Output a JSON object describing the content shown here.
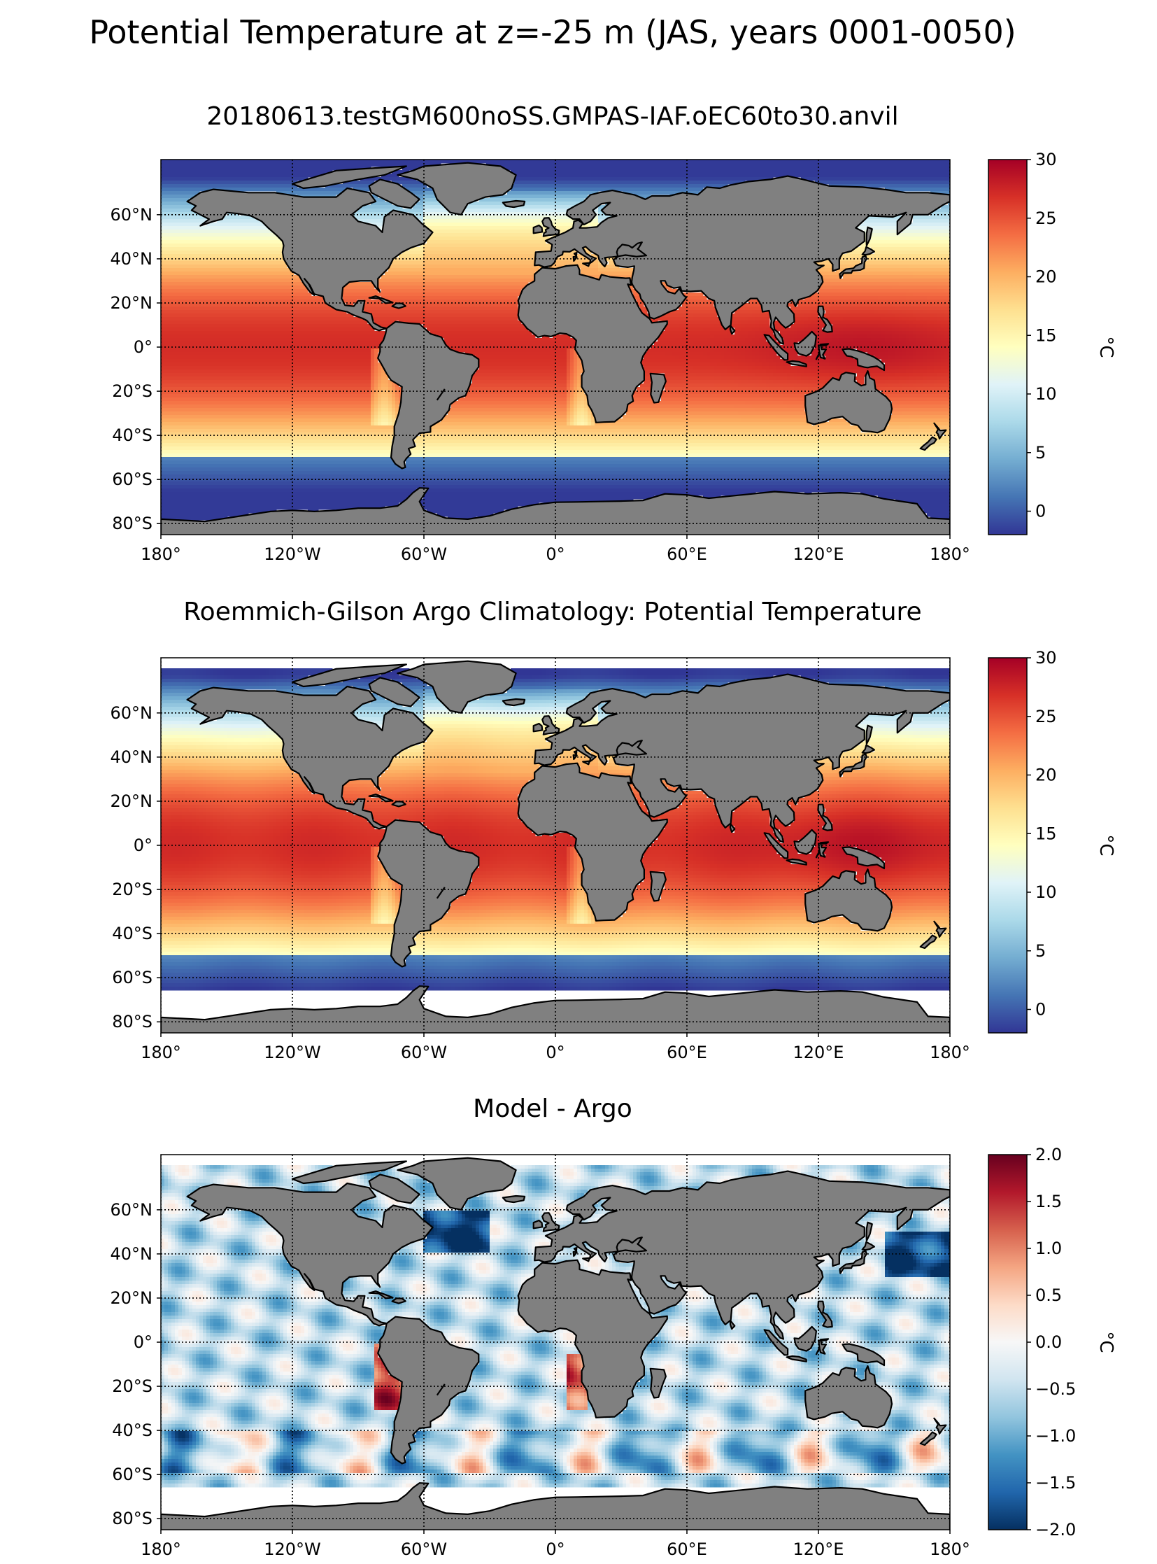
{
  "figure": {
    "title": "Potential Temperature at z=-25 m (JAS, years 0001-0050)"
  },
  "colors": {
    "land": "#808080",
    "frame": "#000000",
    "missing": "#ffffff"
  },
  "chart_data": [
    {
      "type": "heatmap",
      "title": "20180613.testGM600noSS.GMPAS-IAF.oEC60to30.anvil",
      "colormap": "RdYlBu_r",
      "field": "model",
      "xlim": [
        -180,
        180
      ],
      "ylim": [
        -85,
        85
      ],
      "xticks": [
        -180,
        -120,
        -60,
        0,
        60,
        120,
        180
      ],
      "xtick_labels": [
        "180°",
        "120°W",
        "60°W",
        "0°",
        "60°E",
        "120°E",
        "180°"
      ],
      "yticks": [
        60,
        40,
        20,
        0,
        -20,
        -40,
        -60,
        -80
      ],
      "ytick_labels": [
        "60°N",
        "40°N",
        "20°N",
        "0°",
        "20°S",
        "40°S",
        "60°S",
        "80°S"
      ],
      "grid": true,
      "colorbar": {
        "range": [
          -2,
          30
        ],
        "ticks": [
          0,
          5,
          10,
          15,
          20,
          25,
          30
        ],
        "tick_labels": [
          "0",
          "5",
          "10",
          "15",
          "20",
          "25",
          "30"
        ],
        "label": "°C"
      },
      "data_lat_range": [
        -78,
        85
      ]
    },
    {
      "type": "heatmap",
      "title": "Roemmich-Gilson Argo Climatology: Potential Temperature",
      "colormap": "RdYlBu_r",
      "field": "argo",
      "xlim": [
        -180,
        180
      ],
      "ylim": [
        -85,
        85
      ],
      "xticks": [
        -180,
        -120,
        -60,
        0,
        60,
        120,
        180
      ],
      "xtick_labels": [
        "180°",
        "120°W",
        "60°W",
        "0°",
        "60°E",
        "120°E",
        "180°"
      ],
      "yticks": [
        60,
        40,
        20,
        0,
        -20,
        -40,
        -60,
        -80
      ],
      "ytick_labels": [
        "60°N",
        "40°N",
        "20°N",
        "0°",
        "20°S",
        "40°S",
        "60°S",
        "80°S"
      ],
      "grid": true,
      "colorbar": {
        "range": [
          -2,
          30
        ],
        "ticks": [
          0,
          5,
          10,
          15,
          20,
          25,
          30
        ],
        "tick_labels": [
          "0",
          "5",
          "10",
          "15",
          "20",
          "25",
          "30"
        ],
        "label": "°C"
      },
      "data_lat_range": [
        -65,
        80
      ]
    },
    {
      "type": "heatmap",
      "title": "Model - Argo",
      "colormap": "RdBu_r",
      "field": "bias",
      "xlim": [
        -180,
        180
      ],
      "ylim": [
        -85,
        85
      ],
      "xticks": [
        -180,
        -120,
        -60,
        0,
        60,
        120,
        180
      ],
      "xtick_labels": [
        "180°",
        "120°W",
        "60°W",
        "0°",
        "60°E",
        "120°E",
        "180°"
      ],
      "yticks": [
        60,
        40,
        20,
        0,
        -20,
        -40,
        -60,
        -80
      ],
      "ytick_labels": [
        "60°N",
        "40°N",
        "20°N",
        "0°",
        "20°S",
        "40°S",
        "60°S",
        "80°S"
      ],
      "grid": true,
      "colorbar": {
        "range": [
          -2,
          2
        ],
        "ticks": [
          -2,
          -1.5,
          -1,
          -0.5,
          0,
          0.5,
          1,
          1.5,
          2
        ],
        "tick_labels": [
          "−2.0",
          "−1.5",
          "−1.0",
          "−0.5",
          "0.0",
          "0.5",
          "1.0",
          "1.5",
          "2.0"
        ],
        "label": "°C"
      },
      "data_lat_range": [
        -65,
        80
      ]
    }
  ]
}
